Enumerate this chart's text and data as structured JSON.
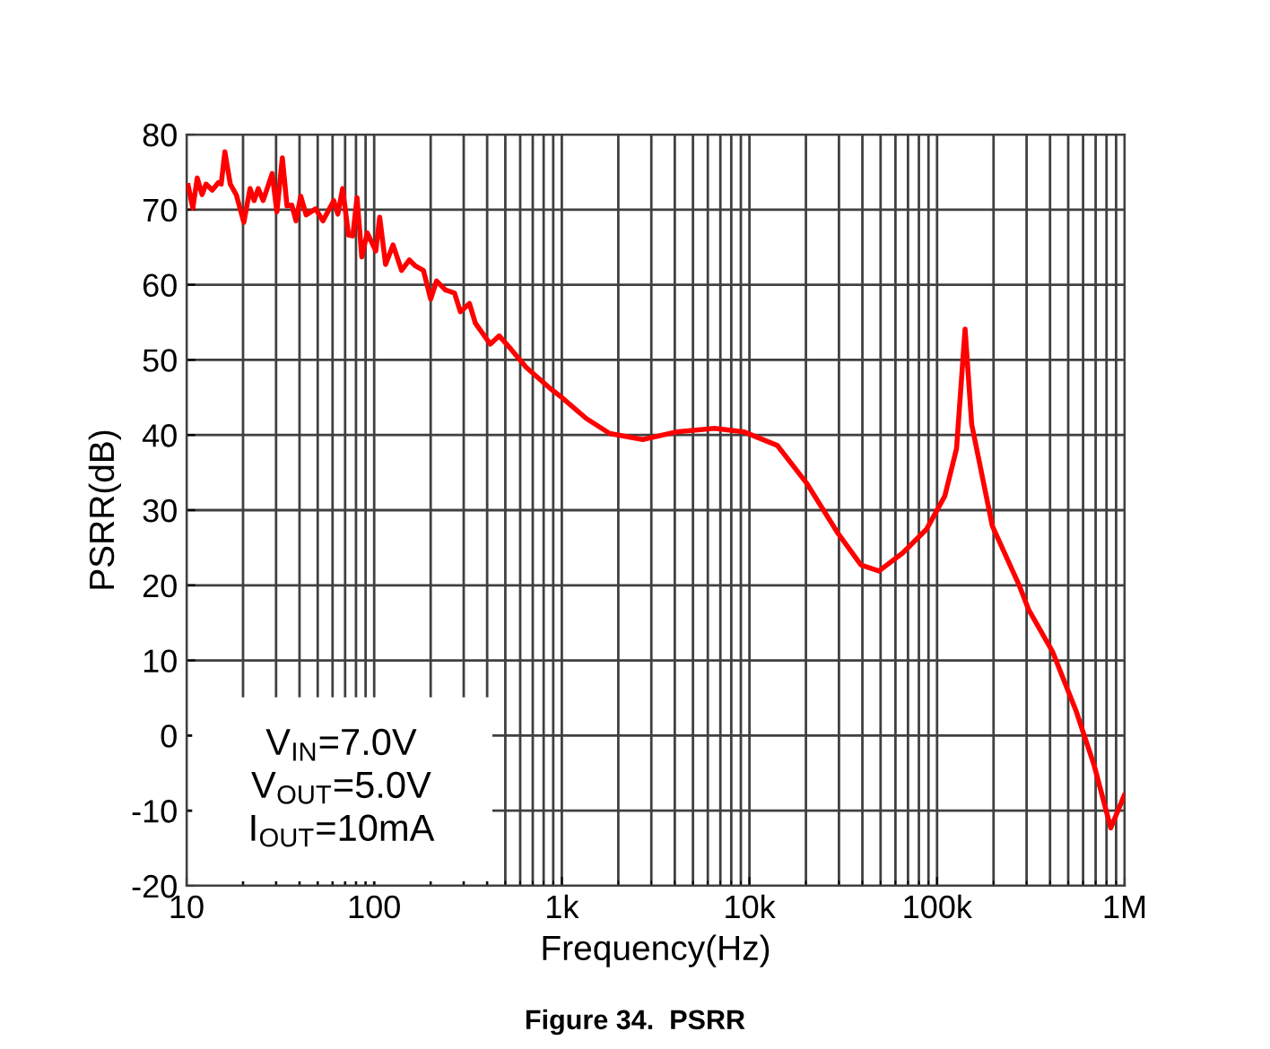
{
  "chart_data": {
    "type": "line",
    "xlabel": "Frequency(Hz)",
    "ylabel": "PSRR(dB)",
    "log": "x",
    "xlim": [
      10,
      1000000
    ],
    "ylim": [
      -20,
      80
    ],
    "xticks": [
      10,
      100,
      {
        "value": 1000,
        "label": "1k"
      },
      {
        "value": 10000,
        "label": "10k"
      },
      {
        "value": 100000,
        "label": "100k"
      },
      {
        "value": 1000000,
        "label": "1M"
      }
    ],
    "yticks": [
      -20,
      -10,
      0,
      10,
      20,
      30,
      40,
      50,
      60,
      70,
      80
    ],
    "grid": true,
    "legend": false,
    "marker": "none",
    "line_style": "solid",
    "series": [
      {
        "color": "#ff0000",
        "x": [
          10.2,
          10.8,
          11.4,
          12.1,
          12.7,
          13.7,
          14.8,
          15.3,
          16.0,
          17.1,
          18.4,
          20.2,
          21.8,
          22.9,
          24.1,
          25.6,
          28.6,
          30.3,
          32.4,
          34.3,
          36.4,
          38.3,
          40.6,
          43.4,
          48.8,
          53.3,
          60.9,
          64.0,
          67.9,
          73.0,
          76.9,
          81.0,
          85.9,
          91.8,
          102,
          107,
          115,
          126,
          140,
          154,
          166,
          183,
          200,
          215,
          240,
          268,
          288,
          322,
          346,
          416,
          464,
          537,
          646,
          867,
          1000,
          1350,
          1800,
          2700,
          4050,
          6510,
          9400,
          14100,
          20300,
          29300,
          39300,
          49000,
          65600,
          88100,
          110000,
          127000,
          141000,
          153000,
          197000,
          275000,
          307000,
          412000,
          552000,
          688000,
          843000,
          993000
        ],
        "values": [
          73.2,
          70.2,
          74.2,
          72,
          73.4,
          72.6,
          73.6,
          73.4,
          77.7,
          73.4,
          72,
          68.3,
          72.8,
          71.2,
          72.8,
          71.2,
          74.8,
          69.7,
          76.9,
          70.5,
          70.6,
          68.5,
          71.8,
          69.3,
          70.1,
          68.5,
          71.2,
          69.4,
          72.8,
          66.6,
          66.5,
          71.6,
          63.7,
          66.9,
          64.5,
          69,
          62.7,
          65.3,
          61.9,
          63.3,
          62.5,
          61.9,
          58.1,
          60.5,
          59.3,
          58.9,
          56.4,
          57.5,
          54.9,
          52.1,
          53.2,
          51.4,
          49,
          46.2,
          45,
          42.2,
          40.2,
          39.4,
          40.4,
          40.9,
          40.4,
          38.6,
          33.5,
          27.1,
          22.7,
          21.9,
          24.3,
          27.5,
          31.9,
          38.2,
          54.1,
          41.4,
          27.9,
          19.9,
          16.8,
          11.2,
          3.2,
          -4,
          -12.3,
          -8
        ]
      }
    ],
    "annotations": [
      "V$_{IN}$=7.0V",
      "V$_{OUT}$=5.0V",
      "I$_{OUT}$=10mA",
      "Figure 34.  PSRR"
    ]
  }
}
